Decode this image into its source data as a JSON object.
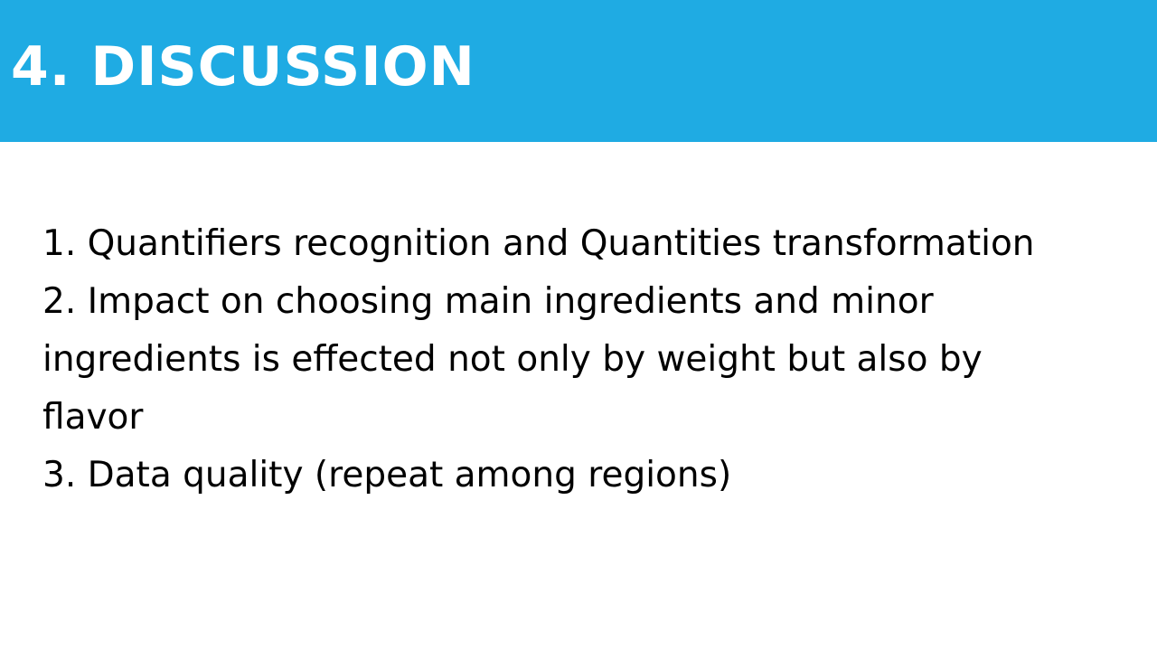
{
  "slide": {
    "title": "4. DISCUSSION",
    "points": [
      "1. Quantifiers recognition and Quantities transformation",
      "2. Impact on choosing main ingredients and minor",
      "ingredients is effected not only by weight but also by",
      "flavor",
      "3. Data quality (repeat among regions)"
    ]
  },
  "colors": {
    "title_bar": "#1fabe3",
    "title_text": "#ffffff",
    "body_text": "#000000",
    "background": "#ffffff"
  }
}
